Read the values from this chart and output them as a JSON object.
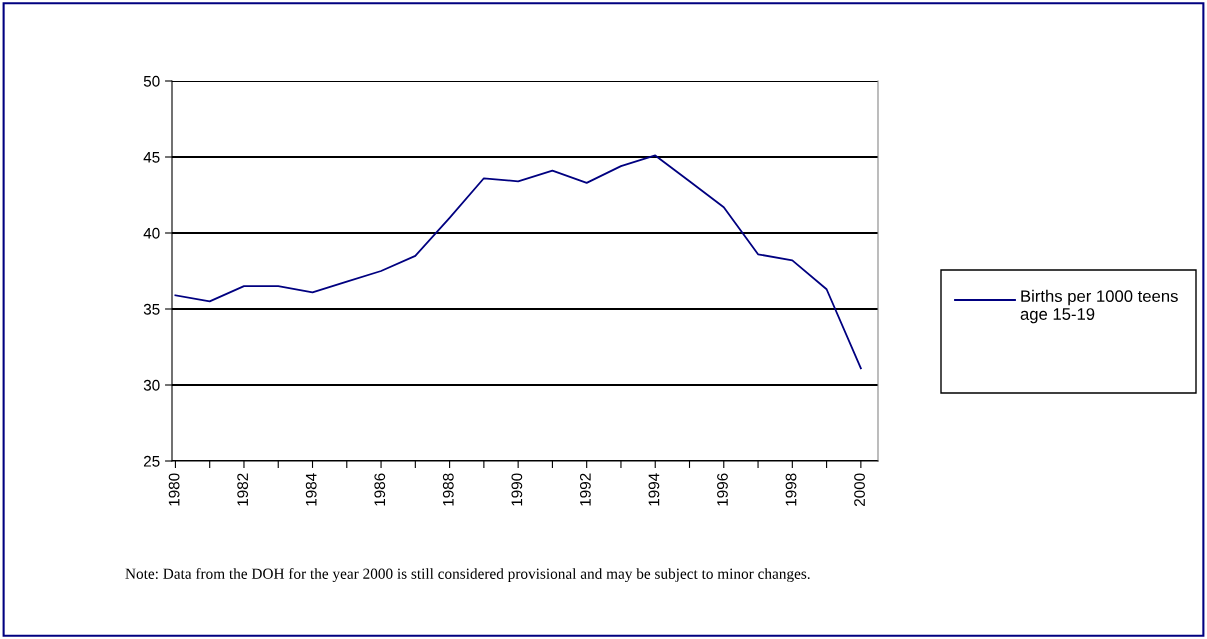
{
  "chart_data": {
    "type": "line",
    "categories": [
      "1980",
      null,
      "1982",
      null,
      "1984",
      null,
      "1986",
      null,
      "1988",
      null,
      "1990",
      null,
      "1992",
      null,
      "1994",
      null,
      "1996",
      null,
      "1998",
      null,
      "2000"
    ],
    "series": [
      {
        "name": "Births per 1000 teens age 15-19",
        "color": "#000080",
        "values": [
          35.9,
          35.5,
          36.5,
          36.5,
          36.1,
          36.8,
          37.5,
          38.5,
          41.0,
          43.6,
          43.4,
          44.1,
          43.3,
          44.4,
          45.1,
          43.4,
          41.7,
          38.6,
          38.2,
          36.3,
          31.1
        ]
      }
    ],
    "ylim": [
      25,
      50
    ],
    "yticks": [
      25,
      30,
      35,
      40,
      45,
      50
    ],
    "grid": "y",
    "legend": "right",
    "marker": "none",
    "line_style": "solid",
    "annotations": [
      "Note: Data from the DOH for the year 2000 is still considered provisional and may be subject to minor changes."
    ]
  }
}
